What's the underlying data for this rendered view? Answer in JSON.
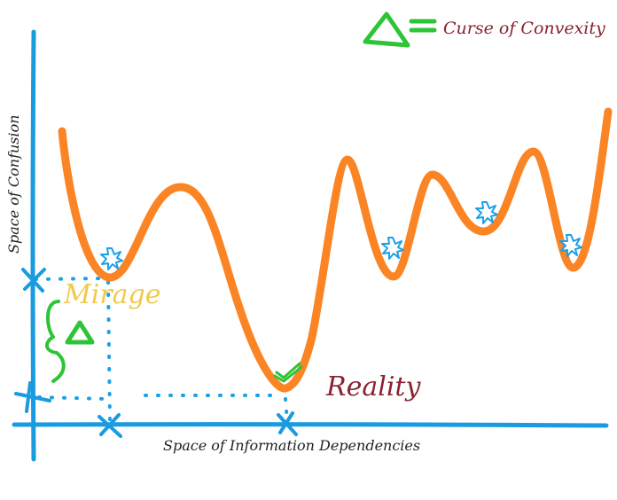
{
  "legend": {
    "label": "Curse of Convexity",
    "icon": "triangle-icon"
  },
  "axes": {
    "x_label": "Space of Information Dependencies",
    "y_label": "Space of Confusion"
  },
  "annotations": {
    "mirage": "Mirage",
    "reality": "Reality"
  },
  "colors": {
    "curve": "#fb8424",
    "axis": "#1a9be0",
    "triangle": "#2ec437",
    "mirage": "#f2c94a",
    "reality": "#8a2232",
    "legend_text": "#8a2232",
    "label_text": "#222222",
    "marker": "#1aa0e6",
    "check": "#2ec437"
  }
}
